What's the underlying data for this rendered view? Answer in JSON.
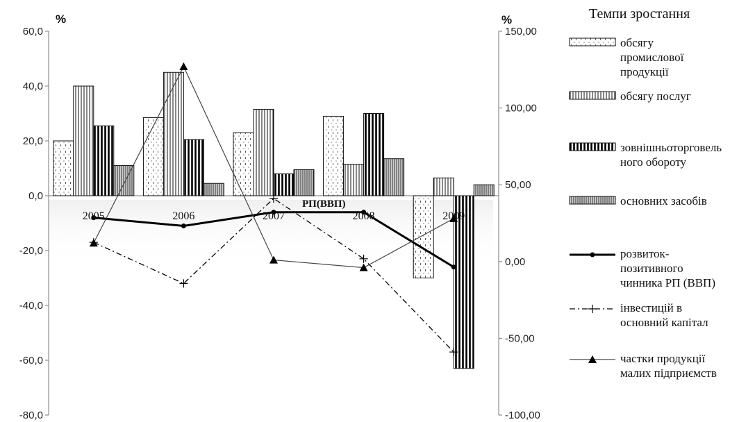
{
  "chart_data": {
    "type": "bar",
    "title": "",
    "legend_title": "Темпи зростання",
    "legend_placement": "right",
    "left_axis": {
      "unit": "%",
      "ylim": [
        -80,
        60
      ],
      "ticks": [
        "60,0",
        "40,0",
        "20,0",
        "0,0",
        "-20,0",
        "-40,0",
        "-60,0",
        "-80,0"
      ]
    },
    "right_axis": {
      "unit": "%",
      "ylim": [
        -100,
        150
      ],
      "ticks": [
        "150,00",
        "100,00",
        "50,00",
        "0,00",
        "-50,00",
        "-100,00"
      ]
    },
    "categories": [
      "2005",
      "2006",
      "2007",
      "2008",
      "2009"
    ],
    "annotation": "РП(ВВП)",
    "grid": false,
    "bar_series": [
      {
        "name": "обсягу промислової продукції",
        "legend_lines": [
          "обсягу",
          "промислової",
          "продукції"
        ],
        "pattern": "dots",
        "axis": "left",
        "values": [
          20.0,
          28.5,
          23.0,
          29.0,
          -30.0
        ]
      },
      {
        "name": "обсягу послуг",
        "legend_lines": [
          "обсягу послуг"
        ],
        "pattern": "vlines-light",
        "axis": "left",
        "values": [
          40.0,
          45.0,
          31.5,
          11.5,
          6.5
        ]
      },
      {
        "name": "зовнішньоторговельного обороту",
        "legend_lines": [
          "зовнішньоторговель",
          "ного обороту"
        ],
        "pattern": "vlines-bold",
        "axis": "left",
        "values": [
          25.5,
          20.5,
          8.0,
          30.0,
          -63.0
        ]
      },
      {
        "name": "основних засобів",
        "legend_lines": [
          "основних засобів"
        ],
        "pattern": "vlines-dense",
        "axis": "left",
        "values": [
          11.0,
          4.5,
          9.5,
          13.5,
          4.0
        ]
      }
    ],
    "line_series": [
      {
        "name": "розвиток-позитивного чинника РП (ВВП)",
        "legend_lines": [
          "розвиток-",
          "позитивного",
          "чинника РП (ВВП)"
        ],
        "style": "solid-bold-dot",
        "axis": "left",
        "values": [
          -8.0,
          -11.0,
          -6.0,
          -6.0,
          -26.0
        ]
      },
      {
        "name": "інвестицій в основний капітал",
        "legend_lines": [
          "інвестицій в",
          "основний капітал"
        ],
        "style": "dashdot-plus",
        "axis": "left",
        "values": [
          -17.0,
          -32.0,
          -1.0,
          -23.0,
          -57.0
        ]
      },
      {
        "name": "частки продукції малих підприємств",
        "legend_lines": [
          "частки продукції",
          "малих підприємств"
        ],
        "style": "thin-triangle",
        "axis": "right",
        "values": [
          12.0,
          127.0,
          1.0,
          -4.0,
          28.0
        ]
      }
    ]
  }
}
